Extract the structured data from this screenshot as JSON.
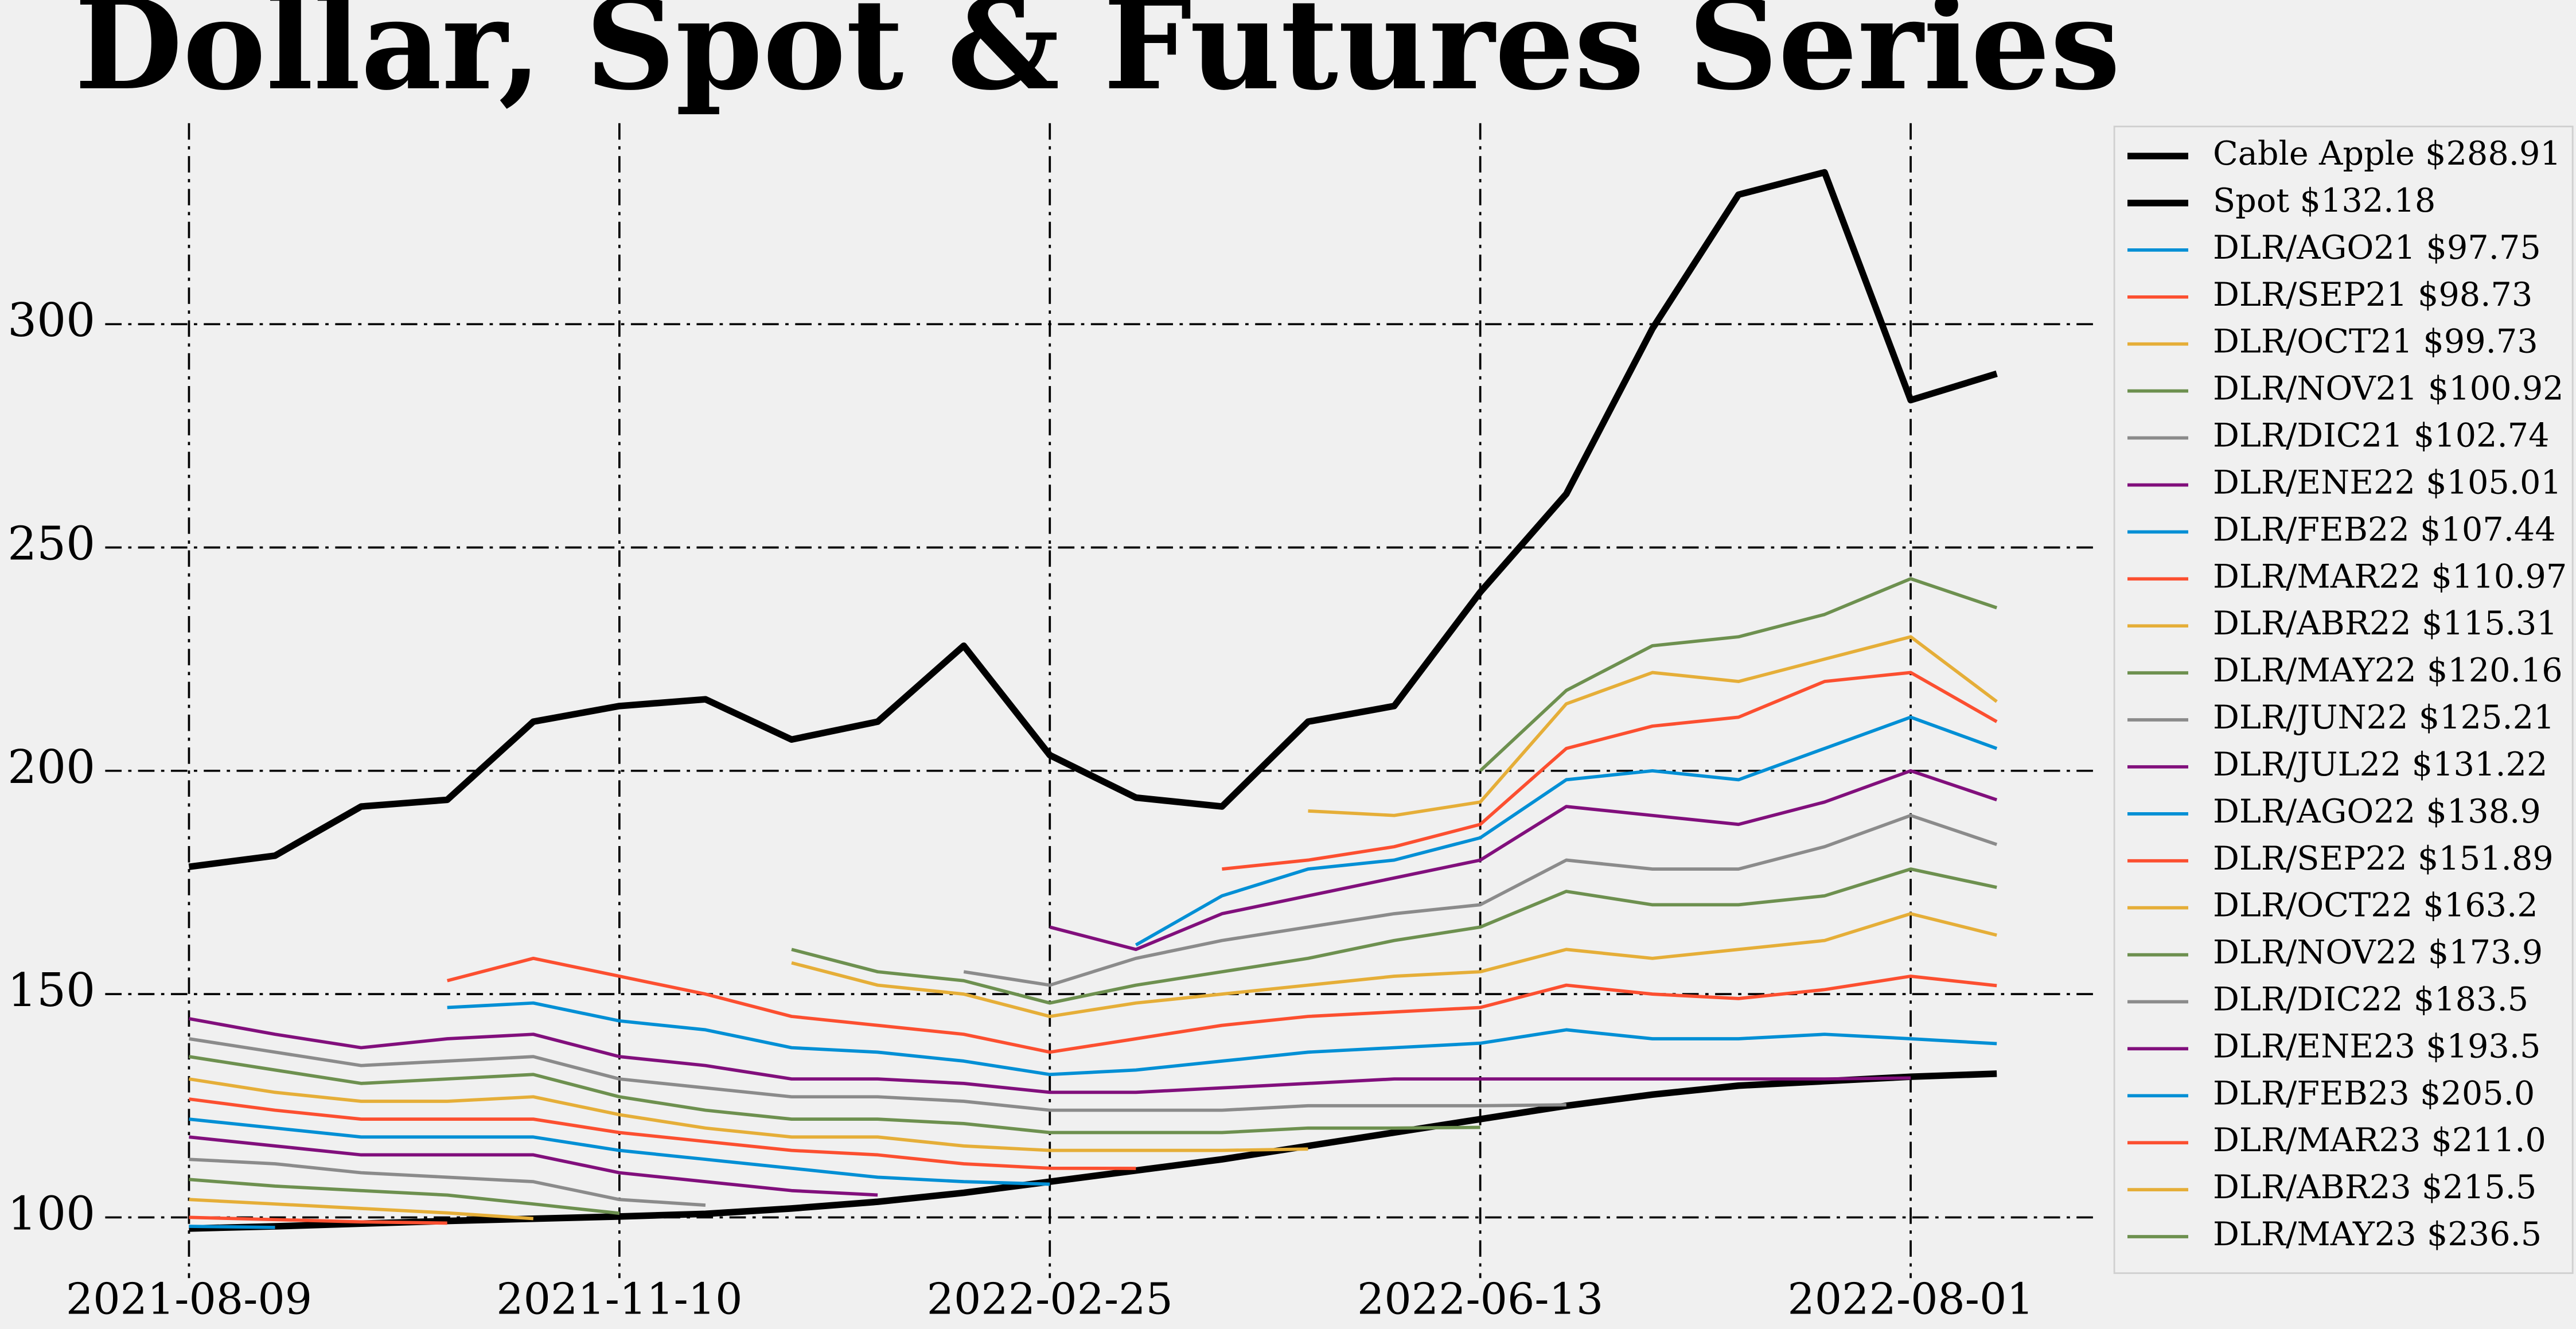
{
  "chart_data": {
    "type": "line",
    "title": "Dollar, Spot & Futures Series",
    "x": [
      0,
      20,
      40,
      60,
      80,
      100,
      120,
      140,
      160,
      180,
      200,
      220,
      240,
      260,
      280,
      300,
      320,
      340,
      360,
      380,
      400,
      420
    ],
    "xlim": [
      -20,
      443
    ],
    "xticks": [
      {
        "value": 0,
        "label": "2021-08-09"
      },
      {
        "value": 100,
        "label": "2021-11-10"
      },
      {
        "value": 200,
        "label": "2022-02-25"
      },
      {
        "value": 300,
        "label": "2022-06-13"
      },
      {
        "value": 400,
        "label": "2022-08-01"
      }
    ],
    "ylim": [
      82,
      345
    ],
    "yticks": [
      100,
      150,
      200,
      250,
      300
    ],
    "grid": true,
    "legend": "outside right",
    "series": [
      {
        "name": "Cable Apple $288.91",
        "color": "#000000",
        "values": [
          178.5,
          181,
          192,
          193.5,
          211,
          214.5,
          216,
          207,
          211,
          228,
          203.5,
          194,
          192,
          211,
          214.5,
          240,
          262,
          299,
          329,
          334,
          283,
          288.91
        ]
      },
      {
        "name": "Spot $132.18",
        "color": "#000000",
        "values": [
          97.5,
          98,
          98.6,
          99.2,
          99.7,
          100.2,
          100.8,
          102,
          103.5,
          105.5,
          108,
          110.5,
          113,
          116,
          119,
          122,
          125,
          127.5,
          129.5,
          130.5,
          131.5,
          132.18
        ]
      },
      {
        "name": "DLR/AGO21 $97.75",
        "color": "#008fd5",
        "values": [
          98,
          97.75,
          null,
          null,
          null,
          null,
          null,
          null,
          null,
          null,
          null,
          null,
          null,
          null,
          null,
          null,
          null,
          null,
          null,
          null,
          null,
          null
        ]
      },
      {
        "name": "DLR/SEP21 $98.73",
        "color": "#fc4f30",
        "values": [
          100,
          99.5,
          99,
          98.73,
          null,
          null,
          null,
          null,
          null,
          null,
          null,
          null,
          null,
          null,
          null,
          null,
          null,
          null,
          null,
          null,
          null,
          null
        ]
      },
      {
        "name": "DLR/OCT21 $99.73",
        "color": "#e5ae38",
        "values": [
          104,
          103,
          102,
          101,
          99.73,
          null,
          null,
          null,
          null,
          null,
          null,
          null,
          null,
          null,
          null,
          null,
          null,
          null,
          null,
          null,
          null,
          null
        ]
      },
      {
        "name": "DLR/NOV21 $100.92",
        "color": "#6d904f",
        "values": [
          108.5,
          107,
          106,
          105,
          103,
          100.92,
          null,
          null,
          null,
          null,
          null,
          null,
          null,
          null,
          null,
          null,
          null,
          null,
          null,
          null,
          null,
          null
        ]
      },
      {
        "name": "DLR/DIC21 $102.74",
        "color": "#8b8b8b",
        "values": [
          113,
          112,
          110,
          109,
          108,
          104,
          102.74,
          null,
          null,
          null,
          null,
          null,
          null,
          null,
          null,
          null,
          null,
          null,
          null,
          null,
          null,
          null
        ]
      },
      {
        "name": "DLR/ENE22 $105.01",
        "color": "#810f7c",
        "values": [
          118,
          116,
          114,
          114,
          114,
          110,
          108,
          106,
          105.01,
          null,
          null,
          null,
          null,
          null,
          null,
          null,
          null,
          null,
          null,
          null,
          null,
          null
        ]
      },
      {
        "name": "DLR/FEB22 $107.44",
        "color": "#008fd5",
        "values": [
          122,
          120,
          118,
          118,
          118,
          115,
          113,
          111,
          109,
          108,
          107.44,
          null,
          null,
          null,
          null,
          null,
          null,
          null,
          null,
          null,
          null,
          null
        ]
      },
      {
        "name": "DLR/MAR22 $110.97",
        "color": "#fc4f30",
        "values": [
          126.5,
          124,
          122,
          122,
          122,
          119,
          117,
          115,
          114,
          112,
          111,
          110.97,
          null,
          null,
          null,
          null,
          null,
          null,
          null,
          null,
          null,
          null
        ]
      },
      {
        "name": "DLR/ABR22 $115.31",
        "color": "#e5ae38",
        "values": [
          131,
          128,
          126,
          126,
          127,
          123,
          120,
          118,
          118,
          116,
          115,
          115,
          115,
          115.31,
          null,
          null,
          null,
          null,
          null,
          null,
          null,
          null
        ]
      },
      {
        "name": "DLR/MAY22 $120.16",
        "color": "#6d904f",
        "values": [
          136,
          133,
          130,
          131,
          132,
          127,
          124,
          122,
          122,
          121,
          119,
          119,
          119,
          120,
          120,
          120.16,
          null,
          null,
          null,
          null,
          null,
          null
        ]
      },
      {
        "name": "DLR/JUN22 $125.21",
        "color": "#8b8b8b",
        "values": [
          140,
          137,
          134,
          135,
          136,
          131,
          129,
          127,
          127,
          126,
          124,
          124,
          124,
          125,
          125,
          125,
          125.21,
          null,
          null,
          null,
          null,
          null
        ]
      },
      {
        "name": "DLR/JUL22 $131.22",
        "color": "#810f7c",
        "values": [
          144.5,
          141,
          138,
          140,
          141,
          136,
          134,
          131,
          131,
          130,
          128,
          128,
          129,
          130,
          131,
          131,
          131,
          131,
          131,
          131,
          131.22,
          null
        ]
      },
      {
        "name": "DLR/AGO22 $138.9",
        "color": "#008fd5",
        "values": [
          null,
          null,
          null,
          147,
          148,
          144,
          142,
          138,
          137,
          135,
          132,
          133,
          135,
          137,
          138,
          139,
          142,
          140,
          140,
          141,
          140,
          138.9
        ]
      },
      {
        "name": "DLR/SEP22 $151.89",
        "color": "#fc4f30",
        "values": [
          null,
          null,
          null,
          153,
          158,
          154,
          150,
          145,
          143,
          141,
          137,
          140,
          143,
          145,
          146,
          147,
          152,
          150,
          149,
          151,
          154,
          151.89
        ]
      },
      {
        "name": "DLR/OCT22 $163.2",
        "color": "#e5ae38",
        "values": [
          null,
          null,
          null,
          null,
          null,
          null,
          null,
          157,
          152,
          150,
          145,
          148,
          150,
          152,
          154,
          155,
          160,
          158,
          160,
          162,
          168,
          163.2
        ]
      },
      {
        "name": "DLR/NOV22 $173.9",
        "color": "#6d904f",
        "values": [
          null,
          null,
          null,
          null,
          null,
          null,
          null,
          160,
          155,
          153,
          148,
          152,
          155,
          158,
          162,
          165,
          173,
          170,
          170,
          172,
          178,
          173.9
        ]
      },
      {
        "name": "DLR/DIC22 $183.5",
        "color": "#8b8b8b",
        "values": [
          null,
          null,
          null,
          null,
          null,
          null,
          null,
          null,
          null,
          155,
          152,
          158,
          162,
          165,
          168,
          170,
          180,
          178,
          178,
          183,
          190,
          183.5
        ]
      },
      {
        "name": "DLR/ENE23 $193.5",
        "color": "#810f7c",
        "values": [
          null,
          null,
          null,
          null,
          null,
          null,
          null,
          null,
          null,
          null,
          165,
          160,
          168,
          172,
          176,
          180,
          192,
          190,
          188,
          193,
          200,
          193.5
        ]
      },
      {
        "name": "DLR/FEB23 $205.0",
        "color": "#008fd5",
        "values": [
          null,
          null,
          null,
          null,
          null,
          null,
          null,
          null,
          null,
          null,
          null,
          161,
          172,
          178,
          180,
          185,
          198,
          200,
          198,
          205,
          212,
          205
        ]
      },
      {
        "name": "DLR/MAR23 $211.0",
        "color": "#fc4f30",
        "values": [
          null,
          null,
          null,
          null,
          null,
          null,
          null,
          null,
          null,
          null,
          null,
          null,
          178,
          180,
          183,
          188,
          205,
          210,
          212,
          220,
          222,
          211
        ]
      },
      {
        "name": "DLR/ABR23 $215.5",
        "color": "#e5ae38",
        "values": [
          null,
          null,
          null,
          null,
          null,
          null,
          null,
          null,
          null,
          null,
          null,
          null,
          null,
          191,
          190,
          193,
          215,
          222,
          220,
          225,
          230,
          215.5
        ]
      },
      {
        "name": "DLR/MAY23 $236.5",
        "color": "#6d904f",
        "values": [
          null,
          null,
          null,
          null,
          null,
          null,
          null,
          null,
          null,
          null,
          null,
          null,
          null,
          null,
          null,
          200,
          218,
          228,
          230,
          235,
          243,
          236.5
        ]
      }
    ]
  }
}
